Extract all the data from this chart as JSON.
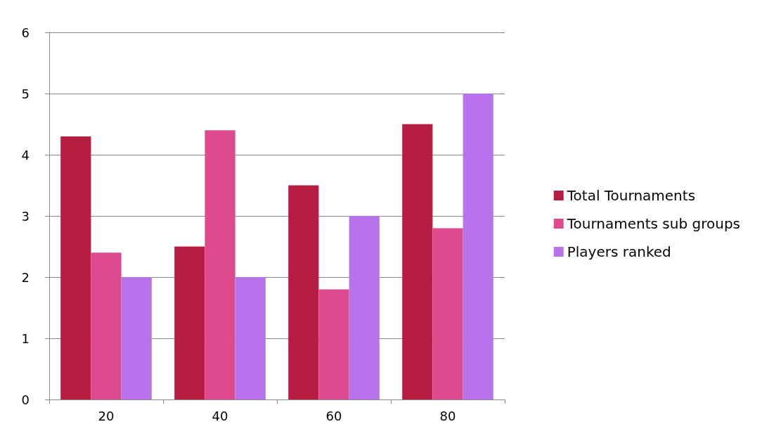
{
  "chart_data": {
    "type": "bar",
    "categories": [
      "20",
      "40",
      "60",
      "80"
    ],
    "series": [
      {
        "name": "Total Tournaments",
        "color": "#b51e42",
        "values": [
          4.3,
          2.5,
          3.5,
          4.5
        ]
      },
      {
        "name": "Tournaments sub groups",
        "color": "#de4a8e",
        "values": [
          2.4,
          4.4,
          1.8,
          2.8
        ]
      },
      {
        "name": "Players ranked",
        "color": "#b873ec",
        "values": [
          2,
          2,
          3,
          5
        ]
      }
    ],
    "ylim": [
      0,
      6
    ],
    "yticks": [
      0,
      1,
      2,
      3,
      4,
      5,
      6
    ],
    "grid": "y",
    "legend": "right"
  }
}
